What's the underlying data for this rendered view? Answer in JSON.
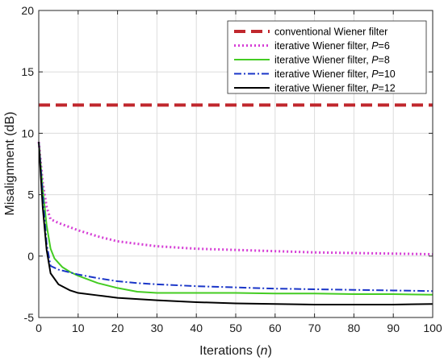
{
  "chart_data": {
    "type": "line",
    "title": "",
    "xlabel": {
      "prefix": "Iterations (",
      "var": "n",
      "suffix": ")"
    },
    "ylabel": "Misalignment (dB)",
    "xlim": [
      0,
      100
    ],
    "ylim": [
      -5,
      20
    ],
    "xticks": [
      0,
      10,
      20,
      30,
      40,
      50,
      60,
      70,
      80,
      90,
      100
    ],
    "yticks": [
      -5,
      0,
      5,
      10,
      15,
      20
    ],
    "grid": true,
    "legend_position": "top-right",
    "series": [
      {
        "name": "conventional Wiener filter",
        "param": "",
        "param_value": "",
        "color": "#c0272d",
        "style": "dashed-thick",
        "x": [
          0,
          100
        ],
        "y": [
          12.3,
          12.3
        ]
      },
      {
        "name": "iterative Wiener filter, ",
        "param": "P",
        "param_value": "=6",
        "color": "#d63fd6",
        "style": "dotted",
        "x": [
          0,
          1,
          2,
          3,
          5,
          10,
          15,
          20,
          25,
          30,
          40,
          50,
          60,
          70,
          80,
          90,
          100
        ],
        "y": [
          9.3,
          6.0,
          4.0,
          3.0,
          2.7,
          2.1,
          1.6,
          1.2,
          1.0,
          0.8,
          0.6,
          0.5,
          0.4,
          0.3,
          0.25,
          0.2,
          0.15
        ]
      },
      {
        "name": "iterative Wiener filter, ",
        "param": "P",
        "param_value": "=8",
        "color": "#44cc22",
        "style": "solid",
        "x": [
          0,
          1,
          2,
          3,
          4,
          6,
          8,
          10,
          15,
          20,
          25,
          30,
          40,
          50,
          60,
          70,
          80,
          90,
          100
        ],
        "y": [
          9.3,
          5.5,
          2.5,
          0.6,
          -0.2,
          -0.9,
          -1.3,
          -1.6,
          -2.2,
          -2.6,
          -2.9,
          -3.0,
          -3.0,
          -3.0,
          -3.05,
          -3.05,
          -3.1,
          -3.1,
          -3.15
        ]
      },
      {
        "name": "iterative Wiener filter, ",
        "param": "P",
        "param_value": "=10",
        "color": "#1a36c8",
        "style": "dashdot",
        "x": [
          0,
          1,
          2,
          3,
          5,
          10,
          15,
          20,
          25,
          30,
          40,
          50,
          60,
          70,
          80,
          90,
          100
        ],
        "y": [
          9.3,
          5.0,
          1.0,
          -0.8,
          -1.1,
          -1.5,
          -1.8,
          -2.05,
          -2.2,
          -2.3,
          -2.45,
          -2.55,
          -2.65,
          -2.7,
          -2.75,
          -2.8,
          -2.85
        ]
      },
      {
        "name": "iterative Wiener filter, ",
        "param": "P",
        "param_value": "=12",
        "color": "#000000",
        "style": "solid",
        "x": [
          0,
          1,
          2,
          3,
          5,
          8,
          10,
          15,
          20,
          30,
          40,
          50,
          60,
          70,
          80,
          90,
          100
        ],
        "y": [
          9.3,
          4.0,
          0.5,
          -1.4,
          -2.3,
          -2.8,
          -3.0,
          -3.2,
          -3.4,
          -3.6,
          -3.75,
          -3.85,
          -3.9,
          -3.95,
          -3.95,
          -3.95,
          -3.9
        ]
      }
    ]
  }
}
